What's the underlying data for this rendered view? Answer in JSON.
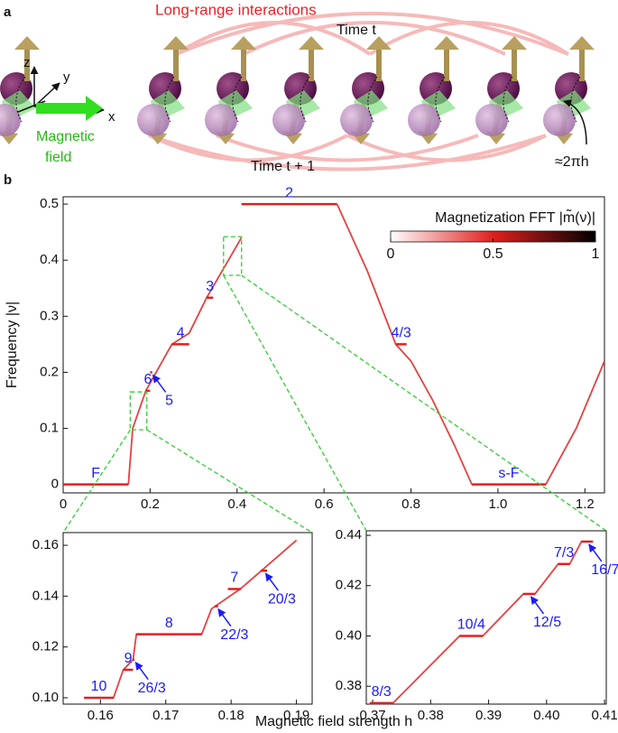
{
  "panel_a": {
    "label": "a",
    "title": "Long-range interactions",
    "time_t": "Time t",
    "time_t1": "Time t + 1",
    "axis_z": "z",
    "axis_y": "y",
    "axis_x": "x",
    "field_1": "Magnetic",
    "field_2": "field",
    "rotation": "≈2πh"
  },
  "panel_b": {
    "label": "b",
    "xlabel": "Magnetic field strength h"
  },
  "chart_data": [
    {
      "type": "plateau",
      "ylabel": "Frequency |ν|",
      "xlim": [
        0,
        1.245
      ],
      "xticks": [
        0,
        0.2,
        0.4,
        0.6,
        0.8,
        {
          "value": 1,
          "label": "1.0"
        },
        1.2
      ],
      "ylim": [
        -0.015,
        0.513
      ],
      "yticks": [
        0,
        0.1,
        0.2,
        0.3,
        0.4,
        0.5
      ],
      "x": [
        0.15,
        0.16,
        0.19,
        0.25,
        0.29,
        0.33,
        0.41,
        null,
        0.63,
        0.7,
        0.765,
        0.8,
        0.85,
        0.9,
        0.94,
        null,
        1.11,
        1.18,
        1.245
      ],
      "values": [
        0,
        0.1,
        0.167,
        0.25,
        0.27,
        0.333,
        0.44,
        null,
        0.5,
        0.38,
        0.25,
        0.22,
        0.15,
        0.07,
        0,
        null,
        0,
        0.1,
        0.22
      ],
      "color": "#e02020",
      "plateaus": [
        {
          "label": "F",
          "h": [
            0,
            0.15
          ],
          "value": 0,
          "arrow": false
        },
        {
          "label": "6",
          "h": [
            0.19,
            0.2
          ],
          "value": 0.167,
          "arrow": false
        },
        {
          "label": "5",
          "h": [
            0.2,
            0.205
          ],
          "value": 0.2,
          "arrow": true
        },
        {
          "label": "4",
          "h": [
            0.25,
            0.29
          ],
          "value": 0.25,
          "arrow": false
        },
        {
          "label": "3",
          "h": [
            0.33,
            0.345
          ],
          "value": 0.333,
          "arrow": false
        },
        {
          "label": "2",
          "h": [
            0.41,
            0.63
          ],
          "value": 0.5,
          "arrow": false
        },
        {
          "label": "4/3",
          "h": [
            0.765,
            0.79
          ],
          "value": 0.25,
          "arrow": false
        },
        {
          "label": "s-F",
          "h": [
            0.94,
            1.11
          ],
          "value": 0,
          "arrow": false
        }
      ],
      "colorbar": {
        "label": "Magnetization FFT |m̃(ν)|",
        "lim": [
          0,
          1
        ],
        "ticks": [
          0,
          0.5,
          1
        ],
        "colors": [
          "#ffffff",
          "#e02020",
          "#000000"
        ]
      }
    },
    {
      "type": "plateau",
      "xlim": [
        0.1543,
        0.1924
      ],
      "xticks": [
        0.16,
        0.17,
        0.18,
        0.19
      ],
      "ylim": [
        0.0975,
        0.165
      ],
      "yticks": [
        {
          "value": 0.1,
          "label": "0.10"
        },
        0.12,
        0.14,
        0.16
      ],
      "x": [
        0.1575,
        0.162,
        0.1635,
        0.165,
        0.1655,
        0.1755,
        0.177,
        0.1815,
        0.19
      ],
      "values": [
        0.1,
        0.1,
        0.111,
        0.115,
        0.125,
        0.125,
        0.135,
        0.143,
        0.162
      ],
      "color": "#e02020",
      "plateaus": [
        {
          "label": "10",
          "h": [
            0.1575,
            0.162
          ],
          "value": 0.1,
          "arrow": false
        },
        {
          "label": "9",
          "h": [
            0.1635,
            0.165
          ],
          "value": 0.111,
          "arrow": false
        },
        {
          "label": "26/3",
          "h": [
            0.165,
            0.1652
          ],
          "value": 0.115,
          "arrow": true
        },
        {
          "label": "8",
          "h": [
            0.1655,
            0.1755
          ],
          "value": 0.125,
          "arrow": false
        },
        {
          "label": "22/3",
          "h": [
            0.1775,
            0.178
          ],
          "value": 0.136,
          "arrow": true
        },
        {
          "label": "7",
          "h": [
            0.1795,
            0.1815
          ],
          "value": 0.1428,
          "arrow": false
        },
        {
          "label": "20/3",
          "h": [
            0.1845,
            0.1855
          ],
          "value": 0.15,
          "arrow": true
        }
      ]
    },
    {
      "type": "plateau",
      "xlim": [
        0.3689,
        0.4103
      ],
      "xticks": [
        0.37,
        0.38,
        0.39,
        {
          "value": 0.4,
          "label": "0.40"
        },
        0.41
      ],
      "ylim": [
        0.3729,
        0.4418
      ],
      "yticks": [
        0.38,
        {
          "value": 0.4,
          "label": "0.40"
        },
        0.42,
        0.44
      ],
      "x": [
        0.3695,
        0.3735,
        0.385,
        0.389,
        0.396,
        0.398,
        0.402,
        0.404,
        0.406,
        0.408
      ],
      "values": [
        0.3733,
        0.3733,
        0.4,
        0.4,
        0.4167,
        0.4167,
        0.4286,
        0.4286,
        0.4375,
        0.4375
      ],
      "color": "#e02020",
      "plateaus": [
        {
          "label": "8/3",
          "h": [
            0.3695,
            0.3735
          ],
          "value": 0.3733,
          "arrow": false
        },
        {
          "label": "10/4",
          "h": [
            0.385,
            0.389
          ],
          "value": 0.4,
          "arrow": false
        },
        {
          "label": "12/5",
          "h": [
            0.396,
            0.398
          ],
          "value": 0.4167,
          "arrow": true
        },
        {
          "label": "7/3",
          "h": [
            0.402,
            0.404
          ],
          "value": 0.4286,
          "arrow": false
        },
        {
          "label": "16/7",
          "h": [
            0.406,
            0.408
          ],
          "value": 0.4375,
          "arrow": true
        }
      ]
    }
  ]
}
